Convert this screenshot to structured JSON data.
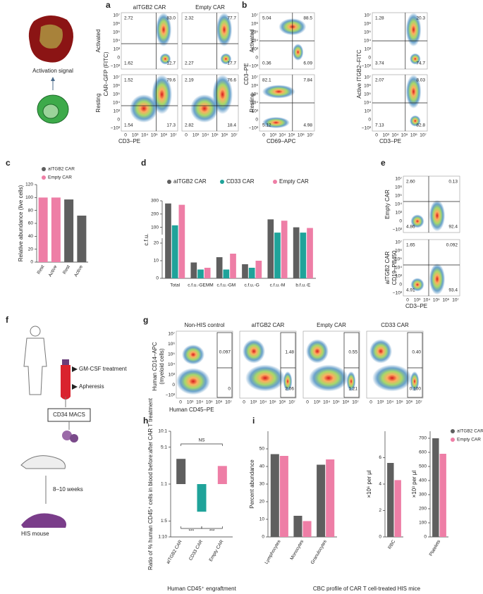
{
  "panel_letters": [
    "a",
    "b",
    "c",
    "d",
    "e",
    "f",
    "g",
    "h",
    "i"
  ],
  "schematic": {
    "activation": "Activation signal",
    "gm_csf": "GM-CSF treatment",
    "apheresis": "Apheresis",
    "macs": "CD34 MACS",
    "weeks": "8–10 weeks",
    "his": "HIS mouse"
  },
  "flow_ticks": {
    "y": [
      "−10³",
      "0",
      "10³",
      "10⁴",
      "10⁵",
      "10⁶",
      "10⁷"
    ],
    "x": [
      "0",
      "10³",
      "10⁴",
      "10⁵",
      "10⁶",
      "10⁷"
    ]
  },
  "a": {
    "columns": [
      "aITGB2 CAR",
      "Empty CAR"
    ],
    "rows": [
      "Activated",
      "Resting"
    ],
    "ylabel": "CAR–GFP (FITC)",
    "xlabel": "CD3–PE",
    "quadrants": [
      [
        [
          "2.72",
          "83.0",
          "1.62",
          "12.7"
        ],
        [
          "2.32",
          "77.7",
          "2.27",
          "17.7"
        ]
      ],
      [
        [
          "1.52",
          "79.6",
          "1.54",
          "17.3"
        ],
        [
          "2.19",
          "76.6",
          "2.82",
          "18.4"
        ]
      ]
    ]
  },
  "b": {
    "rows": [
      "Activated",
      "Resting"
    ],
    "ylabels": [
      "CD3–PE",
      "Active ITGB2–FITC"
    ],
    "xlabels": [
      "CD69–APC",
      "CD3–PE"
    ],
    "quadrants": [
      [
        [
          "5.04",
          "88.5",
          "0.36",
          "6.09"
        ],
        [
          "1.28",
          "20.3",
          "3.74",
          "74.7"
        ]
      ],
      [
        [
          "82.1",
          "7.84",
          "5.12",
          "4.98"
        ],
        [
          "2.07",
          "8.03",
          "7.13",
          "82.8"
        ]
      ]
    ]
  },
  "e": {
    "rows": [
      "Empty CAR",
      "aITGB2 CAR"
    ],
    "ylabel": "CD19–PB450",
    "xlabel": "CD3–PE",
    "quadrants": [
      [
        "2.60",
        "0.13",
        "4.86",
        "92.4"
      ],
      [
        "1.65",
        "0.092",
        "4.91",
        "93.4"
      ]
    ]
  },
  "g": {
    "columns": [
      "Non-HIS control",
      "aITGB2 CAR",
      "Empty CAR",
      "CD33 CAR"
    ],
    "ylabel": "Human CD14–APC",
    "ylabel2": "(myeloid cells)",
    "xlabel": "Human CD45–PE",
    "gates": [
      [
        "0.097",
        "0"
      ],
      [
        "1.48",
        "2.06"
      ],
      [
        "0.55",
        "1.21"
      ],
      [
        "0.40",
        "0.100"
      ]
    ]
  },
  "chart_data": [
    {
      "type": "bar",
      "ylabel": "Relative abundance (live cells)",
      "categories": [
        "Rest",
        "Active",
        "Rest",
        "Active"
      ],
      "series": [
        {
          "name": "aITGB2 CAR",
          "color": "#5f5f5f",
          "values": [
            null,
            null,
            97,
            72
          ]
        },
        {
          "name": "Empty CAR",
          "color": "#ee7ea6",
          "values": [
            100,
            100,
            null,
            null
          ]
        }
      ],
      "ylim": [
        0,
        120
      ],
      "yticks": [
        0,
        20,
        40,
        60,
        80,
        100,
        120
      ]
    },
    {
      "type": "bar",
      "ylabel": "c.f.u.",
      "categories": [
        "Total",
        "c.f.u.-GEMM",
        "c.f.u.-GM",
        "c.f.u.-G",
        "c.f.u.-M",
        "b.f.u.-E"
      ],
      "series": [
        {
          "name": "aITGB2 CAR",
          "color": "#5f5f5f",
          "values": [
            280,
            9,
            12,
            8,
            160,
            100
          ]
        },
        {
          "name": "CD33 CAR",
          "color": "#1fa39a",
          "values": [
            115,
            5,
            5,
            6,
            60,
            60
          ]
        },
        {
          "name": "Empty CAR",
          "color": "#ee7ea6",
          "values": [
            270,
            6,
            14,
            10,
            150,
            95
          ]
        }
      ],
      "ylim": [
        0,
        300
      ],
      "ybreak": [
        22,
        50
      ],
      "yticks": [
        0,
        10,
        20,
        100,
        200,
        300
      ]
    },
    {
      "type": "bar",
      "log": true,
      "ylabel": "Ratio of % human CD45⁺ cells in blood before:after CAR T treatment",
      "xlabel": "Human CD45⁺ engraftment",
      "annotations": [
        "NS",
        "***",
        "***"
      ],
      "categories": [
        "aITGB2 CAR",
        "CD33 CAR",
        "Empty CAR"
      ],
      "values": [
        3,
        0.3,
        2.2
      ],
      "colors": [
        "#5f5f5f",
        "#1fa39a",
        "#ee7ea6"
      ],
      "ylim": [
        0.1,
        10
      ],
      "yticks": [
        {
          "value": 0.1,
          "label": "1:10"
        },
        {
          "value": 0.2,
          "label": "1:5"
        },
        {
          "value": 1,
          "label": "1:1"
        },
        {
          "value": 5,
          "label": "5:1"
        },
        {
          "value": 10,
          "label": "10:1"
        }
      ]
    },
    {
      "type": "bar",
      "ylabel": "Percent abundance",
      "caption": "CBC profile of CAR T cell-treated HIS mice",
      "categories": [
        "Lymphocytes",
        "Monocytes",
        "Granulocytes"
      ],
      "series": [
        {
          "color": "#5f5f5f",
          "values": [
            47,
            12,
            41
          ]
        },
        {
          "color": "#ee7ea6",
          "values": [
            46,
            9,
            44
          ]
        }
      ],
      "ylim": [
        0,
        60
      ],
      "yticks": [
        0,
        10,
        20,
        30,
        40,
        50
      ]
    },
    {
      "type": "bar",
      "ylabel": "×10⁶ per μl",
      "categories": [
        "RBC"
      ],
      "series": [
        {
          "color": "#5f5f5f",
          "values": [
            5.6
          ]
        },
        {
          "color": "#ee7ea6",
          "values": [
            4.3
          ]
        }
      ],
      "ylim": [
        0,
        8
      ],
      "yticks": [
        0,
        2,
        4,
        6
      ]
    },
    {
      "type": "bar",
      "ylabel": "×10³ per μl",
      "categories": [
        "Platelets"
      ],
      "series": [
        {
          "name": "aITGB2 CAR",
          "color": "#5f5f5f",
          "values": [
            700
          ]
        },
        {
          "name": "Empty CAR",
          "color": "#ee7ea6",
          "values": [
            590
          ]
        }
      ],
      "ylim": [
        0,
        750
      ],
      "yticks": [
        0,
        100,
        200,
        300,
        400,
        500,
        600,
        700
      ]
    }
  ]
}
